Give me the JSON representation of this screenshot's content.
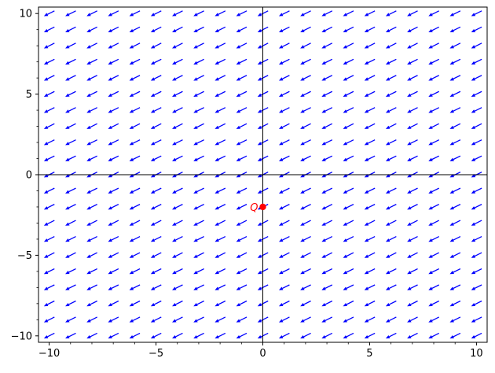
{
  "chart_data": {
    "type": "vector_field",
    "xlim": [
      -10.5,
      10.5
    ],
    "ylim": [
      -10.4,
      10.4
    ],
    "x_ticks": [
      -10,
      -5,
      0,
      5,
      10
    ],
    "x_tick_labels": [
      "−10",
      "−5",
      "0",
      "5",
      "10"
    ],
    "y_ticks": [
      -10,
      -5,
      0,
      5,
      10
    ],
    "y_tick_labels": [
      "−10",
      "−5",
      "0",
      "5",
      "10"
    ],
    "x_minor_step": 1,
    "y_minor_step": 1,
    "grid": false,
    "axes_lines_through_origin": true,
    "field": {
      "x_min": -10.0,
      "x_max": 10.0,
      "x_count": 21,
      "y_min": -10.0,
      "y_max": 10.0,
      "y_count": 21,
      "direction": [
        -1.0,
        -0.5
      ],
      "color": "#0000ff"
    },
    "points": [
      {
        "label": "Q",
        "x": 0.0,
        "y": -2.0,
        "color": "#ff0000"
      }
    ]
  }
}
